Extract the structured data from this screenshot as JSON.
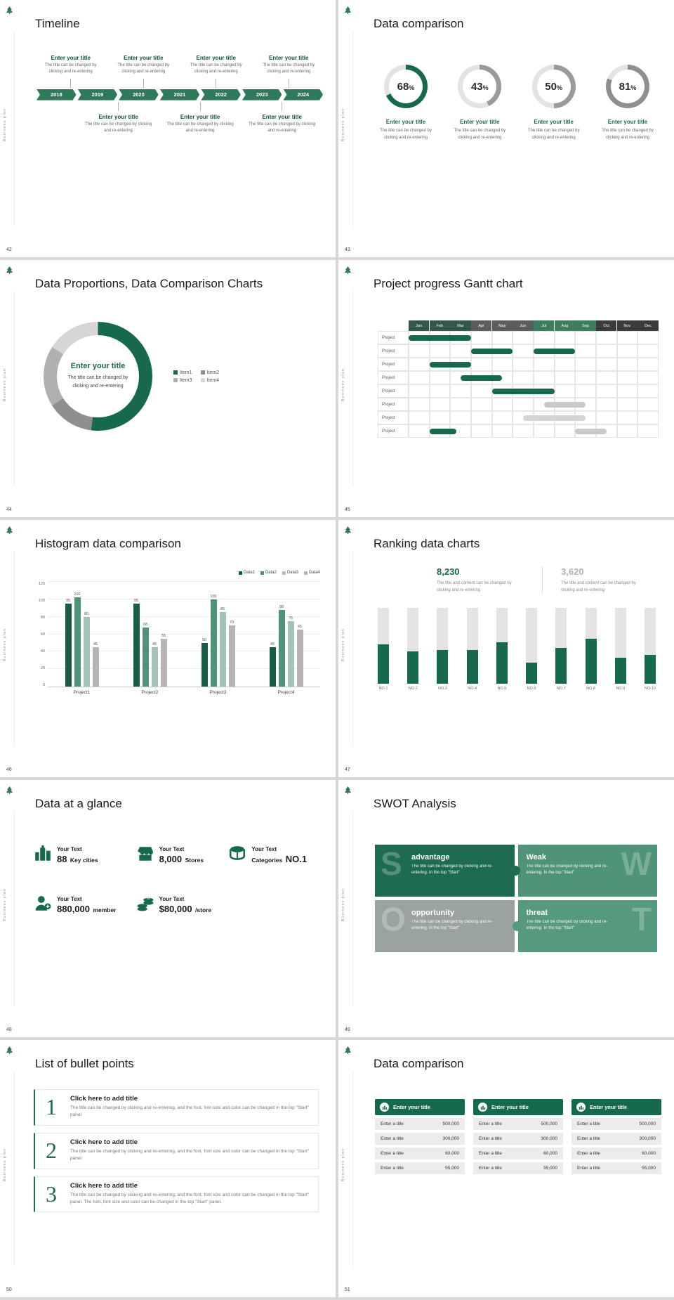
{
  "frame": {
    "sidebar_text": "Business plan",
    "logo_icon": "tree-logo-icon",
    "brand_green": "#17694e"
  },
  "slides": [
    {
      "number": "42",
      "title": "Timeline",
      "timeline": {
        "band_color": "#2e7b5c",
        "years": [
          "2018",
          "2019",
          "2020",
          "2021",
          "2022",
          "2023",
          "2024"
        ],
        "top": [
          {
            "title": "Enter your title",
            "caption": "The title can be changed by clicking and re-entering"
          },
          {
            "title": "Enter your title",
            "caption": "The title can be changed by clicking and re-entering"
          },
          {
            "title": "Enter your title",
            "caption": "The title can be changed by clicking and re-entering"
          },
          {
            "title": "Enter your title",
            "caption": "The title can be changed by clicking and re-entering"
          }
        ],
        "bottom": [
          {
            "title": "Enter your title",
            "caption": "The title can be changed by clicking and re-entering"
          },
          {
            "title": "Enter your title",
            "caption": "The title can be changed by clicking and re-entering"
          },
          {
            "title": "Enter your title",
            "caption": "The title can be changed by clicking and re-entering"
          }
        ]
      }
    },
    {
      "number": "43",
      "title": "Data comparison",
      "rings": [
        {
          "pct": 68,
          "color": "#17694e",
          "track": "#e3e3e3",
          "title": "Enter your title",
          "caption": "The title can be changed by clicking and re-entering"
        },
        {
          "pct": 43,
          "color": "#9b9b9b",
          "track": "#e3e3e3",
          "title": "Enter your title",
          "caption": "The title can be changed by clicking and re-entering"
        },
        {
          "pct": 50,
          "color": "#9b9b9b",
          "track": "#e3e3e3",
          "title": "Enter your title",
          "caption": "The title can be changed by clicking and re-entering"
        },
        {
          "pct": 81,
          "color": "#8f8f8f",
          "track": "#e3e3e3",
          "title": "Enter your title",
          "caption": "The title can be changed by clicking and re-entering"
        }
      ]
    },
    {
      "number": "44",
      "title": "Data Proportions, Data Comparison Charts",
      "pie": {
        "type": "pie",
        "items": [
          {
            "label": "Item1",
            "value": 52,
            "color": "#17694e"
          },
          {
            "label": "Item2",
            "value": 14,
            "color": "#8f8f8f"
          },
          {
            "label": "Item3",
            "value": 18,
            "color": "#b0b0b0"
          },
          {
            "label": "Item4",
            "value": 16,
            "color": "#d6d6d6"
          }
        ],
        "center_title": "Enter your title",
        "center_caption": "The title can be changed by clicking and re-entering"
      }
    },
    {
      "number": "45",
      "title": "Project progress Gantt chart",
      "gantt": {
        "months": [
          {
            "label": "Jan",
            "color": "#35564a"
          },
          {
            "label": "Feb",
            "color": "#35564a"
          },
          {
            "label": "Mar",
            "color": "#35564a"
          },
          {
            "label": "Apr",
            "color": "#5a5f5e"
          },
          {
            "label": "May",
            "color": "#5a5f5e"
          },
          {
            "label": "Jun",
            "color": "#5a5f5e"
          },
          {
            "label": "Jul",
            "color": "#3f7d63"
          },
          {
            "label": "Aug",
            "color": "#3f7d63"
          },
          {
            "label": "Sep",
            "color": "#3f7d63"
          },
          {
            "label": "Oct",
            "color": "#3c3c3c"
          },
          {
            "label": "Nov",
            "color": "#3c3c3c"
          },
          {
            "label": "Dec",
            "color": "#3c3c3c"
          }
        ],
        "rows": [
          "Project",
          "Project",
          "Project",
          "Project",
          "Project",
          "Project",
          "Project",
          "Project"
        ],
        "bars": [
          {
            "row": 0,
            "start": 0,
            "span": 3,
            "color": "#17694e"
          },
          {
            "row": 1,
            "start": 3,
            "span": 2,
            "color": "#17694e"
          },
          {
            "row": 1,
            "start": 6,
            "span": 2,
            "color": "#17694e"
          },
          {
            "row": 2,
            "start": 1,
            "span": 2,
            "color": "#17694e"
          },
          {
            "row": 3,
            "start": 2.5,
            "span": 2,
            "color": "#17694e"
          },
          {
            "row": 4,
            "start": 4,
            "span": 3,
            "color": "#17694e"
          },
          {
            "row": 5,
            "start": 6.5,
            "span": 2,
            "color": "#c9c9c9"
          },
          {
            "row": 6,
            "start": 5.5,
            "span": 3,
            "color": "#d4d4d4"
          },
          {
            "row": 7,
            "start": 1,
            "span": 1.3,
            "color": "#17694e"
          },
          {
            "row": 7,
            "start": 8,
            "span": 1.5,
            "color": "#c9c9c9"
          }
        ]
      }
    },
    {
      "number": "46",
      "title": "Histogram data comparison",
      "chart": {
        "type": "bar",
        "categories": [
          "Project1",
          "Project2",
          "Project3",
          "Project4"
        ],
        "series": [
          {
            "name": "Data1",
            "color": "#175d45",
            "values": [
              95,
              95,
              50,
              45
            ]
          },
          {
            "name": "Data2",
            "color": "#4f9378",
            "values": [
              102,
              68,
              100,
              88
            ]
          },
          {
            "name": "Data3",
            "color": "#a2c3b6",
            "values": [
              80,
              45,
              85,
              75
            ]
          },
          {
            "name": "Data4",
            "color": "#b5b5b5",
            "values": [
              45,
              55,
              70,
              65
            ]
          }
        ],
        "ylim": [
          0,
          120
        ],
        "yticks": [
          0,
          20,
          40,
          60,
          80,
          100,
          120
        ]
      }
    },
    {
      "number": "47",
      "title": "Ranking data charts",
      "stats": [
        {
          "value": "8,230",
          "caption": "The title and content can be changed by clicking and re-entering"
        },
        {
          "value": "3,620",
          "caption": "The title and content can be changed by clicking and re-entering"
        }
      ],
      "chart": {
        "type": "bar",
        "categories": [
          "NO.1",
          "NO.2",
          "NO.3",
          "NO.4",
          "NO.5",
          "NO.6",
          "NO.7",
          "NO.8",
          "NO.9",
          "NO.10"
        ],
        "values": [
          52,
          43,
          45,
          45,
          55,
          28,
          48,
          60,
          35,
          38
        ],
        "track": 100,
        "bar_color": "#17694e",
        "track_color": "#e4e4e4"
      }
    },
    {
      "number": "48",
      "title": "Data at a glance",
      "items": [
        {
          "icon": "city-icon",
          "label": "Your Text",
          "value": "88",
          "unit": "Key cities"
        },
        {
          "icon": "store-icon",
          "label": "Your Text",
          "value": "8,000",
          "unit": "Stores"
        },
        {
          "icon": "box-icon",
          "label": "Your Text",
          "prefix": "Categories",
          "value": "NO.1"
        },
        {
          "icon": "member-icon",
          "label": "Your Text",
          "value": "880,000",
          "unit": "member"
        },
        {
          "icon": "coins-icon",
          "label": "Your Text",
          "value": "$80,000",
          "unit": "/store"
        }
      ]
    },
    {
      "number": "49",
      "title": "SWOT Analysis",
      "quads": [
        {
          "letter": "S",
          "title": "advantage",
          "caption": "The title can be changed by clicking and re-entering. In the top \"Start\"",
          "color": "#1d6b50"
        },
        {
          "letter": "W",
          "title": "Weak",
          "caption": "The title can be changed by clicking and re-entering. In the top \"Start\"",
          "color": "#4f9378"
        },
        {
          "letter": "O",
          "title": "opportunity",
          "caption": "The title can be changed by clicking and re-entering. In the top \"Start\"",
          "color": "#9aa3a0"
        },
        {
          "letter": "T",
          "title": "threat",
          "caption": "The title can be changed by clicking and re-entering. In the top \"Start\"",
          "color": "#55997e"
        }
      ]
    },
    {
      "number": "50",
      "title": "List of bullet points",
      "items": [
        {
          "num": "1",
          "title": "Click here to add title",
          "body": "The title can be changed by clicking and re-entering, and the font, font size and color can be changed in the top \"Start\" panel"
        },
        {
          "num": "2",
          "title": "Click here to add title",
          "body": "The title can be changed by clicking and re-entering, and the font, font size and color can be changed in the top \"Start\" panel"
        },
        {
          "num": "3",
          "title": "Click here to add title",
          "body": "The title can be changed by clicking and re-entering, and the font, font size and color can be changed in the top \"Start\" panel. The font, font size and color can be changed in the top \"Start\" panel."
        }
      ]
    },
    {
      "number": "51",
      "title": "Data comparison",
      "tables": [
        {
          "header": "Enter your title",
          "rows": [
            [
              "Enter a title",
              "500,000"
            ],
            [
              "Enter a title",
              "300,000"
            ],
            [
              "Enter a title",
              "60,000"
            ],
            [
              "Enter a title",
              "55,000"
            ]
          ]
        },
        {
          "header": "Enter your title",
          "rows": [
            [
              "Enter a title",
              "500,000"
            ],
            [
              "Enter a title",
              "300,000"
            ],
            [
              "Enter a title",
              "60,000"
            ],
            [
              "Enter a title",
              "55,000"
            ]
          ]
        },
        {
          "header": "Enter your title",
          "rows": [
            [
              "Enter a title",
              "500,000"
            ],
            [
              "Enter a title",
              "300,000"
            ],
            [
              "Enter a title",
              "60,000"
            ],
            [
              "Enter a title",
              "55,000"
            ]
          ]
        }
      ]
    }
  ]
}
